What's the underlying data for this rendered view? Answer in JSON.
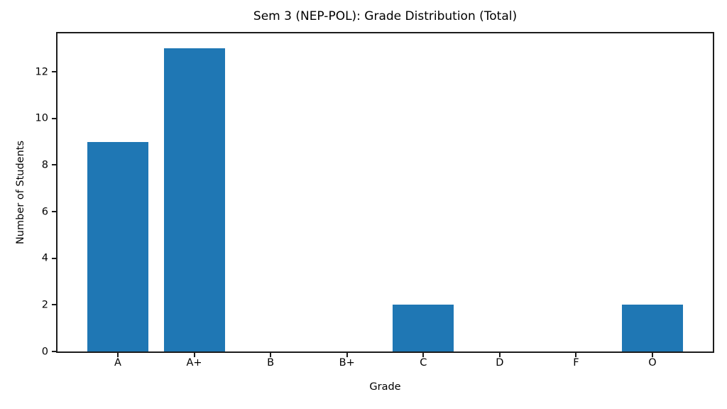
{
  "chart_data": {
    "type": "bar",
    "title": "Sem 3 (NEP-POL): Grade Distribution (Total)",
    "xlabel": "Grade",
    "ylabel": "Number of Students",
    "categories": [
      "A",
      "A+",
      "B",
      "B+",
      "C",
      "D",
      "F",
      "O"
    ],
    "values": [
      9,
      13,
      0,
      0,
      2,
      0,
      0,
      2
    ],
    "yticks": [
      0,
      2,
      4,
      6,
      8,
      10,
      12
    ],
    "ylim": [
      0,
      13.65
    ],
    "xlim": [
      -0.79,
      7.79
    ],
    "bar_width": 0.8,
    "bar_color": "#1f77b4",
    "grid": "off",
    "legend": "none"
  }
}
